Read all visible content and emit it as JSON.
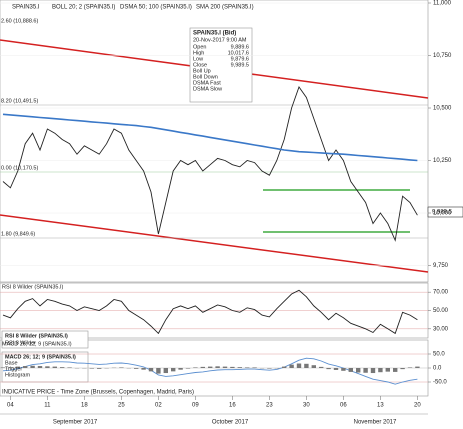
{
  "chart_data": [
    {
      "type": "line",
      "title": "SPAIN35.I",
      "indicators_title": [
        "BOLL 20; 2 (SPAIN35.I)",
        "DSMA 50; 100 (SPAIN35.I)",
        "SMA 200 (SPAIN35.I)"
      ],
      "annotations": [
        "2.60 (10,888.6)",
        "8.20 (10,491.5)",
        "0.00 (10,170.5)",
        "1.80 (9,849.6)"
      ],
      "last_price": "9,989.5",
      "info": {
        "title": "SPAIN35.I (Bid)",
        "date": "20-Nov-2017 9:00 AM",
        "rows": [
          {
            "label": "Open",
            "value": "9,889.6"
          },
          {
            "label": "High",
            "value": "10,017.6"
          },
          {
            "label": "Low",
            "value": "9,879.6"
          },
          {
            "label": "Close",
            "value": "9,989.5"
          }
        ],
        "legend": [
          {
            "name": "Boll Up",
            "color": "#d040d0"
          },
          {
            "name": "Boll Down",
            "color": "#d040d0"
          },
          {
            "name": "DSMA Fast",
            "color": "#c03030"
          },
          {
            "name": "DSMA Slow",
            "color": "#30a030"
          }
        ]
      },
      "ylim": [
        9700,
        11000
      ],
      "yticks": [
        {
          "value": 9750,
          "label": "9,750"
        },
        {
          "value": 10000,
          "label": "10,000"
        },
        {
          "value": 10250,
          "label": "10,250"
        },
        {
          "value": 10500,
          "label": "10,500"
        },
        {
          "value": 10750,
          "label": "10,750"
        },
        {
          "value": 11000,
          "label": "11,000"
        }
      ],
      "series": [
        {
          "name": "SPAIN35.I",
          "color": "#222222",
          "style": "line",
          "values": [
            10150,
            10120,
            10200,
            10330,
            10380,
            10300,
            10400,
            10380,
            10350,
            10330,
            10280,
            10320,
            10300,
            10280,
            10330,
            10400,
            10380,
            10300,
            10250,
            10200,
            10100,
            9900,
            10050,
            10200,
            10250,
            10230,
            10250,
            10200,
            10230,
            10260,
            10250,
            10230,
            10220,
            10250,
            10240,
            10200,
            10180,
            10250,
            10350,
            10500,
            10600,
            10550,
            10450,
            10350,
            10250,
            10300,
            10250,
            10150,
            10100,
            10050,
            9950,
            10000,
            9950,
            9870,
            10080,
            10050,
            9989.5
          ]
        },
        {
          "name": "SMA 200",
          "color": "#3a78c8",
          "style": "line",
          "values": [
            10470,
            10467,
            10464,
            10461,
            10458,
            10455,
            10452,
            10449,
            10446,
            10443,
            10440,
            10437,
            10434,
            10431,
            10428,
            10425,
            10422,
            10419,
            10416,
            10412,
            10408,
            10402,
            10396,
            10390,
            10384,
            10378,
            10372,
            10366,
            10360,
            10354,
            10348,
            10342,
            10336,
            10330,
            10324,
            10318,
            10312,
            10306,
            10300,
            10296,
            10292,
            10290,
            10288,
            10286,
            10284,
            10282,
            10280,
            10277,
            10274,
            10271,
            10268,
            10265,
            10262,
            10259,
            10256,
            10253,
            10250
          ]
        }
      ]
    },
    {
      "type": "line",
      "title": "RSI 8 Wilder (SPAIN35.I)",
      "box_title": "RSI 8 Wilder (SPAIN35.I)",
      "ylim": [
        20,
        80
      ],
      "yticks": [
        {
          "value": 30,
          "label": "30.00"
        },
        {
          "value": 50,
          "label": "50.00"
        },
        {
          "value": 70,
          "label": "70.00"
        }
      ],
      "series": [
        {
          "name": "RSI 8 Wilder",
          "color": "#222222",
          "style": "line",
          "values": [
            45,
            42,
            52,
            60,
            63,
            55,
            62,
            60,
            57,
            55,
            50,
            54,
            52,
            50,
            55,
            62,
            60,
            50,
            45,
            40,
            33,
            25,
            40,
            52,
            55,
            52,
            55,
            48,
            52,
            56,
            54,
            50,
            48,
            53,
            51,
            45,
            43,
            52,
            60,
            68,
            72,
            65,
            55,
            48,
            40,
            47,
            42,
            36,
            33,
            30,
            26,
            35,
            30,
            25,
            48,
            45,
            40
          ]
        }
      ]
    },
    {
      "type": "combo",
      "title": "MACD 26; 12; 9 (SPAIN35.I)",
      "box_title": "MACD 26; 12; 9 (SPAIN35.I)",
      "footer": "INDICATIVE PRICE - Time Zone (Brussels, Copenhagen, Madrid, Paris)",
      "categories": [
        null,
        "04",
        null,
        null,
        null,
        null,
        "11",
        null,
        null,
        null,
        null,
        "18",
        null,
        null,
        null,
        null,
        "25",
        null,
        null,
        null,
        null,
        "02",
        null,
        null,
        null,
        null,
        "09",
        null,
        null,
        null,
        null,
        "16",
        null,
        null,
        null,
        null,
        "23",
        null,
        null,
        null,
        null,
        "30",
        null,
        null,
        null,
        null,
        "06",
        null,
        null,
        null,
        null,
        "13",
        null,
        null,
        null,
        null,
        "20"
      ],
      "months": [
        "September 2017",
        "October 2017",
        "November 2017"
      ],
      "ylim": [
        -100,
        100
      ],
      "yticks": [
        {
          "value": -50,
          "label": "-50.0"
        },
        {
          "value": 0,
          "label": "0.0"
        },
        {
          "value": 50,
          "label": "50.0"
        }
      ],
      "legend_extra": [
        {
          "name": "Trigger",
          "color": "#f08040"
        }
      ],
      "series": [
        {
          "name": "Base",
          "color": "#5b8fd0",
          "style": "line",
          "values": [
            -10,
            -8,
            -2,
            5,
            12,
            15,
            20,
            22,
            22,
            21,
            18,
            17,
            15,
            13,
            14,
            17,
            18,
            15,
            10,
            4,
            -8,
            -25,
            -30,
            -28,
            -24,
            -20,
            -16,
            -14,
            -10,
            -7,
            -6,
            -6,
            -5,
            -4,
            -4,
            -6,
            -8,
            -5,
            3,
            15,
            28,
            35,
            33,
            25,
            14,
            8,
            0,
            -10,
            -20,
            -30,
            -40,
            -45,
            -50,
            -58,
            -50,
            -44,
            -40
          ]
        },
        {
          "name": "Histogram",
          "color": "#777777",
          "style": "bar",
          "values": [
            2,
            3,
            5,
            7,
            8,
            7,
            6,
            5,
            3,
            2,
            0,
            -1,
            -2,
            -3,
            -1,
            1,
            2,
            0,
            -3,
            -6,
            -12,
            -20,
            -18,
            -12,
            -6,
            -2,
            2,
            4,
            5,
            6,
            5,
            4,
            3,
            2,
            2,
            0,
            -2,
            0,
            5,
            12,
            16,
            15,
            10,
            4,
            -4,
            -7,
            -10,
            -14,
            -16,
            -17,
            -18,
            -15,
            -13,
            -14,
            -4,
            2,
            5
          ]
        }
      ]
    }
  ]
}
